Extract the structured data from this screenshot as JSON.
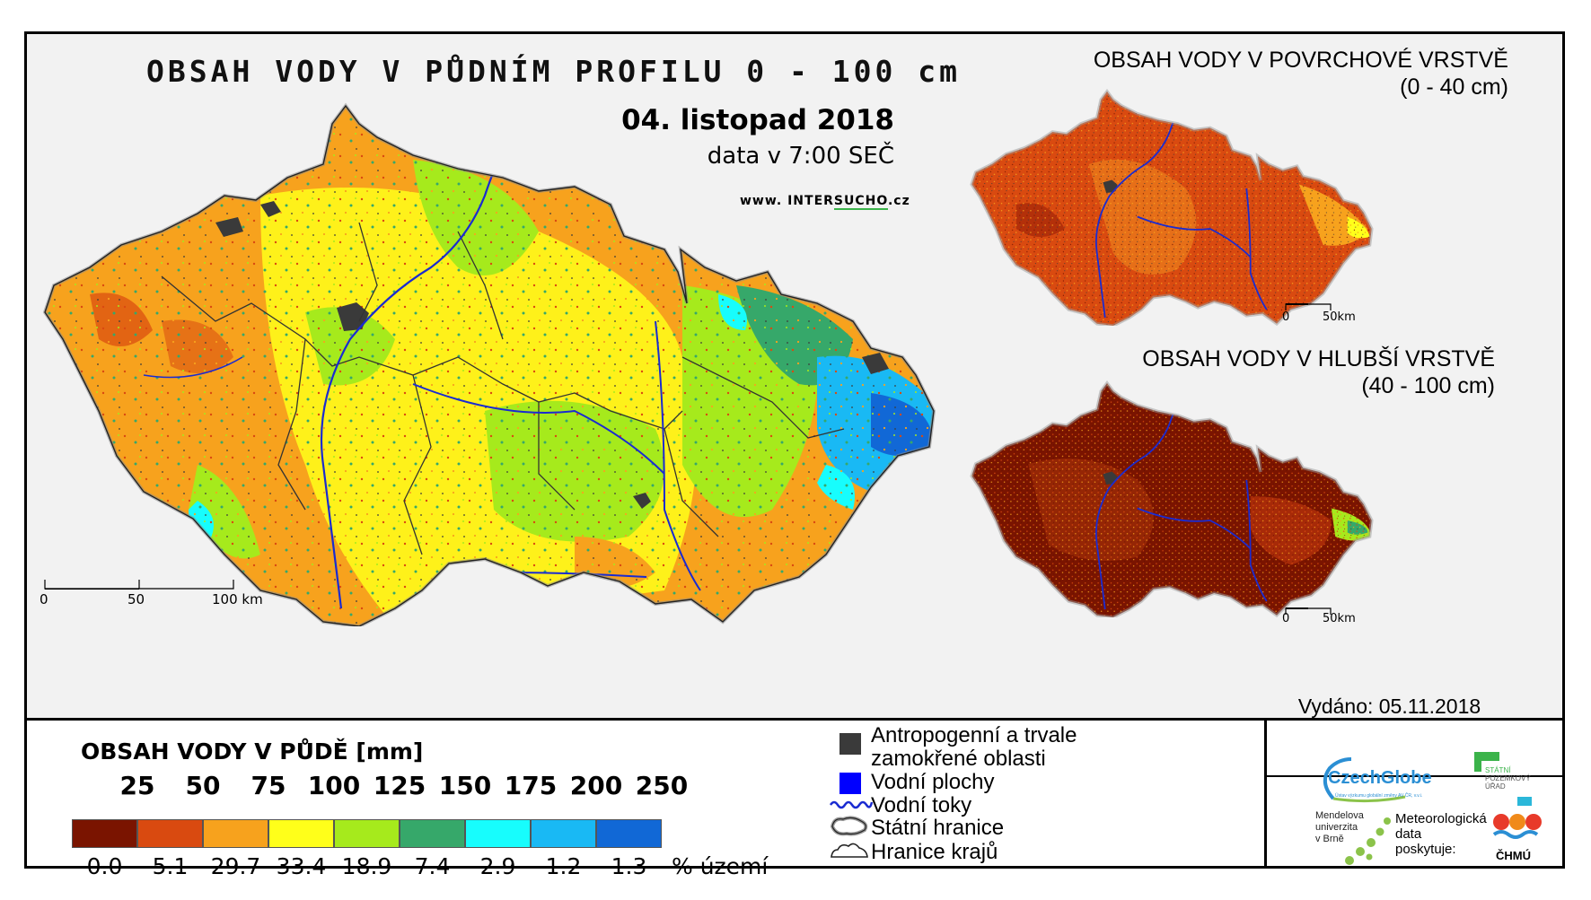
{
  "main_map": {
    "title": "OBSAH VODY V PŮDNÍM PROFILU 0 - 100 cm",
    "date": "04. listopad 2018",
    "time": "data v 7:00 SEČ",
    "url_prefix": "www. INTER",
    "url_brand": "SUCHO",
    "url_suffix": ".cz",
    "scale": {
      "t0": "0",
      "t1": "50",
      "t2": "100 km"
    }
  },
  "inset_surface": {
    "title": "OBSAH VODY V POVRCHOVÉ VRSTVĚ",
    "subtitle": "(0 - 40 cm)",
    "scale": {
      "t0": "0",
      "t1": "50km"
    }
  },
  "inset_deep": {
    "title": "OBSAH VODY V HLUBŠÍ VRSTVĚ",
    "subtitle": "(40 - 100 cm)",
    "scale": {
      "t0": "0",
      "t1": "50km"
    }
  },
  "legend": {
    "title": "OBSAH VODY V PŮDĚ [mm]",
    "thresholds": [
      "25",
      "50",
      "75",
      "100",
      "125",
      "150",
      "175",
      "200",
      "250"
    ],
    "bins": [
      {
        "color": "#7a1400",
        "pct": "0.0"
      },
      {
        "color": "#d94a10",
        "pct": "5.1"
      },
      {
        "color": "#f7a21d",
        "pct": "29.7"
      },
      {
        "color": "#ffff1a",
        "pct": "33.4"
      },
      {
        "color": "#a6ea1c",
        "pct": "18.9"
      },
      {
        "color": "#36a86a",
        "pct": "7.4"
      },
      {
        "color": "#17fdfd",
        "pct": "2.9"
      },
      {
        "color": "#19b9f4",
        "pct": "1.2"
      },
      {
        "color": "#1168d6",
        "pct": "1.3"
      }
    ],
    "pct_unit": "% území"
  },
  "symbols": {
    "anthropogenic_1": "Antropogenní a trvale",
    "anthropogenic_2": "zamokřené oblasti",
    "water_bodies": "Vodní plochy",
    "streams": "Vodní toky",
    "state_border": "Státní hranice",
    "region_border": "Hranice krajů"
  },
  "issued": "Vydáno: 05.11.2018",
  "logos": {
    "czechglobe": "CzechGlobe",
    "czechglobe_sub": "Ústav výzkumu globální změny AV ČR, v.v.i.",
    "spu_1": "STÁTNÍ",
    "spu_2": "POZEMKOVÝ",
    "spu_3": "ÚŘAD",
    "mendel_1": "Mendelova",
    "mendel_2": "univerzita",
    "mendel_3": "v Brně",
    "meteo_1": "Meteorologická",
    "meteo_2": "data",
    "meteo_3": "poskytuje:",
    "chmu": "ČHMÚ"
  },
  "colors": {
    "anthropogenic": "#3a3a3a",
    "water": "#0000ff",
    "river": "#1a2bd1"
  }
}
